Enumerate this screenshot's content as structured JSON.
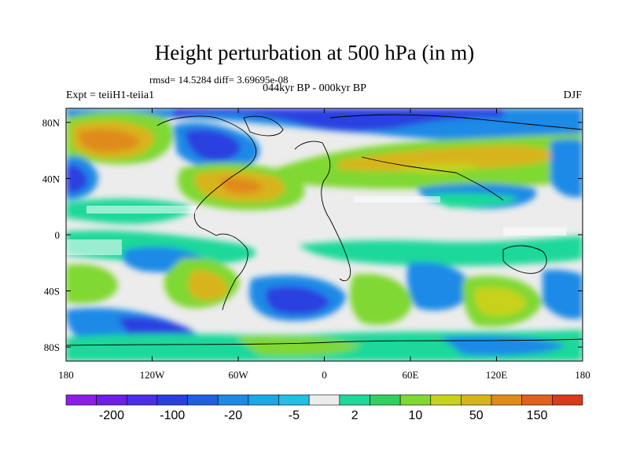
{
  "title": "Height perturbation at 500 hPa (in m)",
  "stats": "rmsd= 14.5284 diff= 3.69695e-08",
  "period": "044kyr BP - 000kyr BP",
  "experiment": "Expt = teiiH1-teiia1",
  "season": "DJF",
  "axes": {
    "x_ticks": [
      "180",
      "120W",
      "60W",
      "0",
      "60E",
      "120E",
      "180"
    ],
    "y_ticks": [
      "80N",
      "40N",
      "0",
      "40S",
      "80S"
    ]
  },
  "colorbar": {
    "colors": [
      "#8c1ee6",
      "#6e1ee6",
      "#4b2ee6",
      "#2a3fe0",
      "#1f5fe0",
      "#1e8ae6",
      "#1aa8e6",
      "#22c0e4",
      "#ececec",
      "#1fd89a",
      "#30d060",
      "#80d832",
      "#c8d21e",
      "#d8b41c",
      "#e08a1a",
      "#e0601e",
      "#d83a1a"
    ],
    "labels": [
      "-200",
      "-100",
      "-20",
      "-5",
      "2",
      "10",
      "50",
      "150"
    ]
  },
  "palette": {
    "deep_neg": "#2a3fe0",
    "mid_neg": "#1e8ae6",
    "light_neg": "#22c0e4",
    "neutral": "#ececec",
    "light_pos": "#1fd89a",
    "mid_pos": "#80d832",
    "strong_pos": "#d8b41c",
    "max_pos": "#e08a1a"
  }
}
